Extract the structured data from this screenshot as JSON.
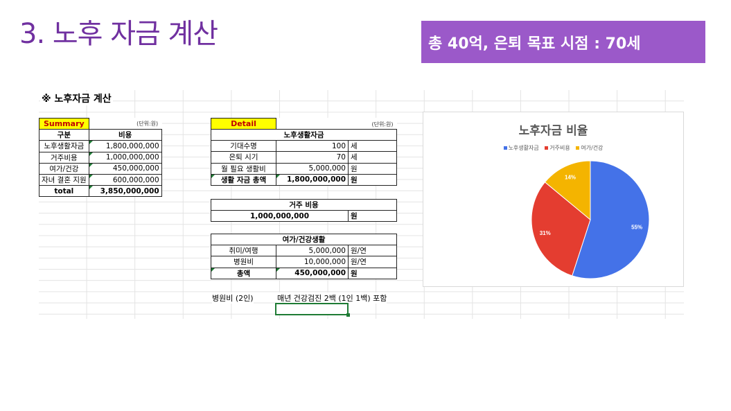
{
  "slide": {
    "title": "3. 노후 자금 계산",
    "goal_banner": "총 40억, 은퇴 목표 시점 : 70세"
  },
  "sheet": {
    "title": "※ 노후자금 계산",
    "summary": {
      "label": "Summary",
      "unit": "(단위:원)",
      "col1": "구분",
      "col2": "비용",
      "rows": [
        {
          "name": "노후생활자금",
          "value": "1,800,000,000"
        },
        {
          "name": "거주비용",
          "value": "1,000,000,000"
        },
        {
          "name": "여가/건강",
          "value": "450,000,000"
        },
        {
          "name": "자녀 결혼 지원",
          "value": "600,000,000"
        }
      ],
      "total_label": "total",
      "total_value": "3,850,000,000"
    },
    "detail": {
      "label": "Detail",
      "unit": "(단위:원)",
      "living": {
        "header": "노후생활자금",
        "rows": [
          {
            "name": "기대수명",
            "value": "100",
            "unit": "세"
          },
          {
            "name": "은퇴 시기",
            "value": "70",
            "unit": "세"
          },
          {
            "name": "월 필요 생활비",
            "value": "5,000,000",
            "unit": "원"
          }
        ],
        "total": {
          "name": "생활 자금 총액",
          "value": "1,800,000,000",
          "unit": "원"
        }
      },
      "housing": {
        "header": "거주 비용",
        "value": "1,000,000,000",
        "unit": "원"
      },
      "leisure": {
        "header": "여가/건강생활",
        "rows": [
          {
            "name": "취미/여행",
            "value": "5,000,000",
            "unit": "원/연"
          },
          {
            "name": "병원비",
            "value": "10,000,000",
            "unit": "원/연"
          }
        ],
        "total": {
          "name": "총액",
          "value": "450,000,000",
          "unit": "원"
        }
      }
    },
    "note": {
      "label": "병원비 (2인)",
      "text": "매년 건강검진 2백 (1인 1백) 포함"
    }
  },
  "chart_data": {
    "type": "pie",
    "title": "노후자금 비율",
    "categories": [
      "노후생활자금",
      "거주비용",
      "여가/건강"
    ],
    "values": [
      55,
      31,
      14
    ],
    "labels": [
      "55%",
      "31%",
      "14%"
    ],
    "colors": [
      "#4472e8",
      "#e43d30",
      "#f4b400"
    ],
    "legend": "top"
  }
}
